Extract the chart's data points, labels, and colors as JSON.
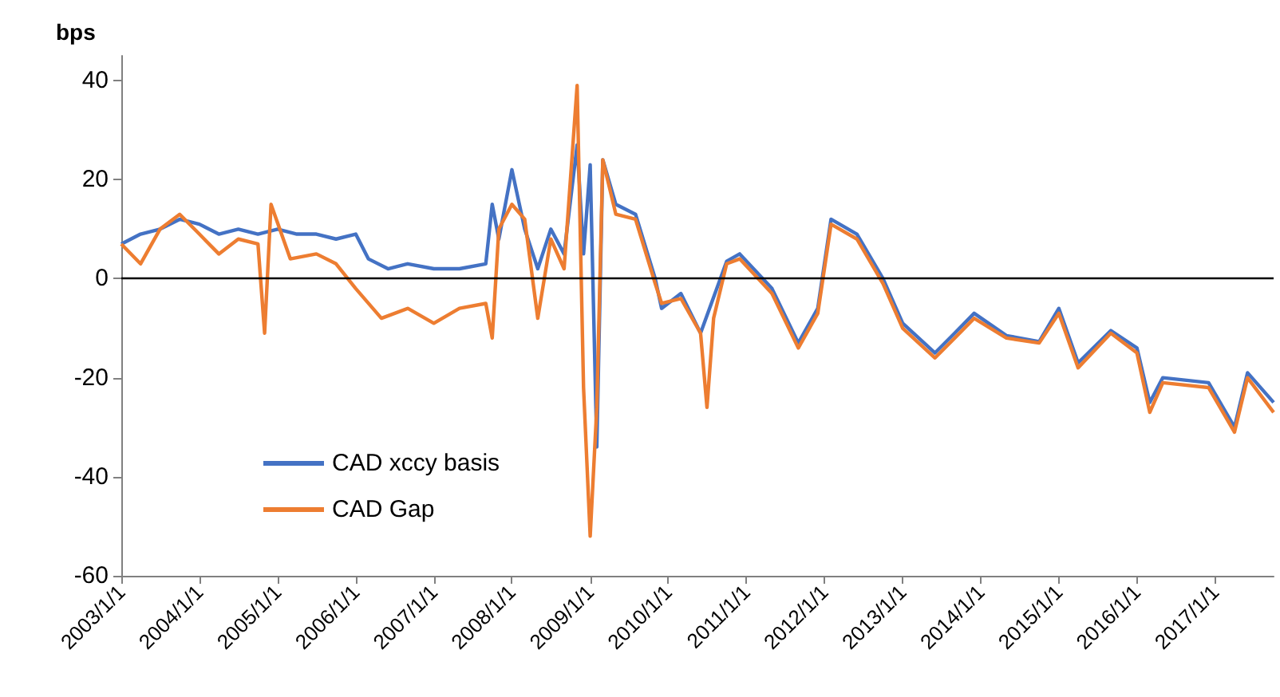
{
  "chart_data": {
    "type": "line",
    "ylabel": "bps",
    "legend": "bottom left",
    "grid": false,
    "marker": "none",
    "line_style": "solid",
    "xlim": [
      "2003-01-01",
      "2017-10-01"
    ],
    "xticks": [
      {
        "value": "2003-01-01",
        "label": "2003/1/1"
      },
      {
        "value": "2004-01-01",
        "label": "2004/1/1"
      },
      {
        "value": "2005-01-01",
        "label": "2005/1/1"
      },
      {
        "value": "2006-01-01",
        "label": "2006/1/1"
      },
      {
        "value": "2007-01-01",
        "label": "2007/1/1"
      },
      {
        "value": "2008-01-01",
        "label": "2008/1/1"
      },
      {
        "value": "2009-01-01",
        "label": "2009/1/1"
      },
      {
        "value": "2010-01-01",
        "label": "2010/1/1"
      },
      {
        "value": "2011-01-01",
        "label": "2011/1/1"
      },
      {
        "value": "2012-01-01",
        "label": "2012/1/1"
      },
      {
        "value": "2013-01-01",
        "label": "2013/1/1"
      },
      {
        "value": "2014-01-01",
        "label": "2014/1/1"
      },
      {
        "value": "2015-01-01",
        "label": "2015/1/1"
      },
      {
        "value": "2016-01-01",
        "label": "2016/1/1"
      },
      {
        "value": "2017-01-01",
        "label": "2017/1/1"
      }
    ],
    "ylim": [
      -60,
      45
    ],
    "yticks": [
      -60,
      -40,
      -20,
      0,
      20,
      40
    ],
    "ref_lines": [
      {
        "axis": "y",
        "value": 0,
        "label": null,
        "color": "#000000"
      }
    ],
    "series": [
      {
        "name": "CAD xccy basis",
        "color": "#4472c4",
        "x": [
          "2003-01",
          "2003-04",
          "2003-07",
          "2003-10",
          "2004-01",
          "2004-04",
          "2004-07",
          "2004-10",
          "2005-01",
          "2005-04",
          "2005-07",
          "2005-10",
          "2006-01",
          "2006-03",
          "2006-06",
          "2006-09",
          "2007-01",
          "2007-05",
          "2007-09",
          "2007-10",
          "2007-11",
          "2008-01",
          "2008-03",
          "2008-05",
          "2008-07",
          "2008-09",
          "2008-11",
          "2008-12",
          "2009-01",
          "2009-02",
          "2009-03",
          "2009-05",
          "2009-08",
          "2009-11",
          "2009-12",
          "2010-03",
          "2010-06",
          "2010-10",
          "2010-12",
          "2011-05",
          "2011-09",
          "2011-12",
          "2012-02",
          "2012-06",
          "2012-10",
          "2013-01",
          "2013-06",
          "2013-09",
          "2013-12",
          "2014-05",
          "2014-10",
          "2015-01",
          "2015-04",
          "2015-09",
          "2016-01",
          "2016-03",
          "2016-05",
          "2016-12",
          "2017-04",
          "2017-06",
          "2017-10"
        ],
        "values": [
          7,
          9,
          10,
          12,
          11,
          9,
          10,
          9,
          10,
          9,
          9,
          8,
          9,
          4,
          2,
          3,
          2,
          2,
          3,
          15,
          8,
          22,
          10,
          2,
          10,
          5,
          27,
          5,
          23,
          -34,
          24,
          15,
          13,
          0,
          -6,
          -3,
          -11,
          3.5,
          5,
          -2,
          -13,
          -6,
          12,
          9,
          0,
          -9,
          -15,
          -11,
          -7,
          -11.5,
          -12.7,
          -6,
          -17,
          -10.5,
          -14,
          -25,
          -20,
          -21,
          -30,
          -19,
          -25
        ]
      },
      {
        "name": "CAD Gap",
        "color": "#ed7d31",
        "x": [
          "2003-01",
          "2003-04",
          "2003-07",
          "2003-10",
          "2004-01",
          "2004-04",
          "2004-07",
          "2004-10",
          "2004-11",
          "2004-12",
          "2005-03",
          "2005-07",
          "2005-10",
          "2006-01",
          "2006-05",
          "2006-09",
          "2007-01",
          "2007-05",
          "2007-09",
          "2007-10",
          "2007-11",
          "2008-01",
          "2008-03",
          "2008-05",
          "2008-07",
          "2008-09",
          "2008-11",
          "2008-12",
          "2009-01",
          "2009-02",
          "2009-03",
          "2009-05",
          "2009-08",
          "2009-11",
          "2009-12",
          "2010-03",
          "2010-06",
          "2010-07",
          "2010-08",
          "2010-10",
          "2010-12",
          "2011-05",
          "2011-09",
          "2011-12",
          "2012-02",
          "2012-06",
          "2012-10",
          "2013-01",
          "2013-06",
          "2013-09",
          "2013-12",
          "2014-05",
          "2014-10",
          "2015-01",
          "2015-04",
          "2015-09",
          "2016-01",
          "2016-03",
          "2016-05",
          "2016-12",
          "2017-04",
          "2017-06",
          "2017-10"
        ],
        "values": [
          7,
          3,
          10,
          13,
          9,
          5,
          8,
          7,
          -11,
          15,
          4,
          5,
          3,
          -2,
          -8,
          -6,
          -9,
          -6,
          -5,
          -12,
          10,
          15,
          12,
          -8,
          8,
          2,
          39,
          -22,
          -52,
          -26,
          24,
          13,
          12,
          -1,
          -5,
          -4,
          -11,
          -26,
          -8,
          3,
          4,
          -3,
          -14,
          -7,
          11,
          8,
          -1,
          -10,
          -16,
          -12,
          -8,
          -12,
          -13,
          -7,
          -18,
          -11,
          -15,
          -27,
          -21,
          -22,
          -31,
          -20,
          -27
        ]
      }
    ]
  }
}
